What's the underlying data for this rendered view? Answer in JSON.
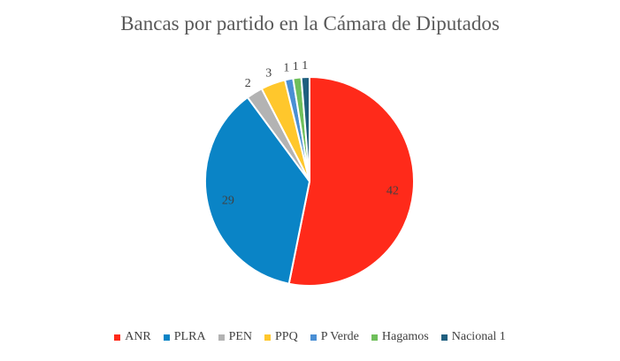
{
  "chart_data": {
    "type": "pie",
    "title": "Bancas por partido en la Cámara de Diputados",
    "categories": [
      "ANR",
      "PLRA",
      "PEN",
      "PPQ",
      "P Verde",
      "Hagamos",
      "Nacional 1"
    ],
    "values": [
      42,
      29,
      2,
      3,
      1,
      1,
      1
    ],
    "colors": [
      "#ff2a1a",
      "#0a84c6",
      "#b3b3b3",
      "#ffc72c",
      "#4a8fd4",
      "#6fbf5b",
      "#1f5f7f"
    ],
    "legend_position": "bottom"
  }
}
